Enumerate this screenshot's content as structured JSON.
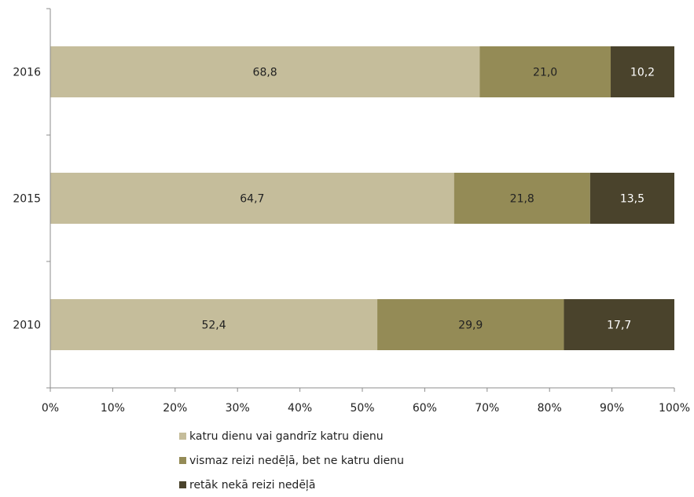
{
  "chart_data": {
    "type": "bar",
    "orientation": "horizontal",
    "stacked": true,
    "categories": [
      "2016",
      "2015",
      "2010"
    ],
    "series": [
      {
        "name": "katru dienu vai gandrīz katru dienu",
        "values": [
          68.8,
          64.7,
          52.4
        ],
        "labels": [
          "68,8",
          "64,7",
          "52,4"
        ],
        "color": "#c5bd9b",
        "label_color": "#222222"
      },
      {
        "name": "vismaz reizi nedēļā, bet ne katru dienu",
        "values": [
          21.0,
          21.8,
          29.9
        ],
        "labels": [
          "21,0",
          "21,8",
          "29,9"
        ],
        "color": "#948b56",
        "label_color": "#222222"
      },
      {
        "name": "retāk nekā reizi nedēļā",
        "values": [
          10.2,
          13.5,
          17.7
        ],
        "labels": [
          "10,2",
          "13,5",
          "17,7"
        ],
        "color": "#4a432c",
        "label_color": "#ffffff"
      }
    ],
    "xlim": [
      0,
      100
    ],
    "xticks": [
      "0%",
      "10%",
      "20%",
      "30%",
      "40%",
      "50%",
      "60%",
      "70%",
      "80%",
      "90%",
      "100%"
    ],
    "grid": false,
    "legend_position": "bottom"
  }
}
